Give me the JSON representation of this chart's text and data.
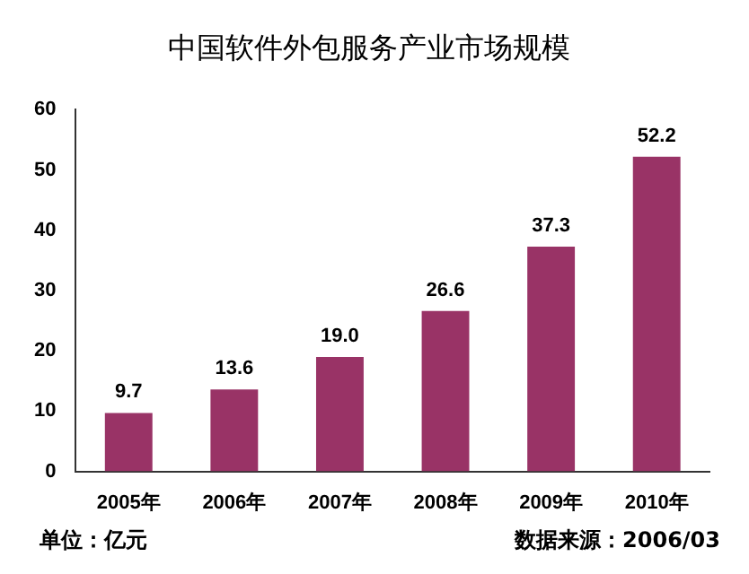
{
  "chart_data": {
    "type": "bar",
    "title": "中国软件外包服务产业市场规模",
    "categories": [
      "2005年",
      "2006年",
      "2007年",
      "2008年",
      "2009年",
      "2010年"
    ],
    "values": [
      9.7,
      13.6,
      19.0,
      26.6,
      37.3,
      52.2
    ],
    "value_labels": [
      "9.7",
      "13.6",
      "19.0",
      "26.6",
      "37.3",
      "52.2"
    ],
    "color": "#993366",
    "ylim": [
      0,
      60
    ],
    "yticks": [
      0,
      10,
      20,
      30,
      40,
      50,
      60
    ],
    "grid": false,
    "legend": false,
    "annotations": [
      "单位：亿元",
      "数据来源：2006/03"
    ]
  }
}
